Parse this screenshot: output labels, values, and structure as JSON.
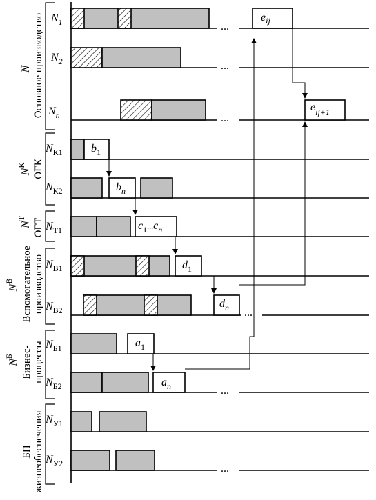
{
  "groups": {
    "main": {
      "letter": "N",
      "sup": "",
      "title": "Основное производство"
    },
    "ogk": {
      "letter": "N",
      "sup": "К",
      "title": "ОГК"
    },
    "ogt": {
      "letter": "N",
      "sup": "Т",
      "title": "ОГТ"
    },
    "aux": {
      "letter": "N",
      "sup": "В",
      "title1": "Вспомогательное",
      "title2": "производство"
    },
    "biz": {
      "letter": "N",
      "sup": "Б",
      "title1": "Бизнес-",
      "title2": "процессы"
    },
    "life": {
      "title1": "БП",
      "title2": "жизнеобеспечения"
    }
  },
  "rows": [
    {
      "id": "n1",
      "letter": "N",
      "sub": "1"
    },
    {
      "id": "n2",
      "letter": "N",
      "sub": "2"
    },
    {
      "id": "nn",
      "letter": "N",
      "sub": "n"
    },
    {
      "id": "k1",
      "letter": "N",
      "sub": "К1"
    },
    {
      "id": "k2",
      "letter": "N",
      "sub": "К2"
    },
    {
      "id": "t1",
      "letter": "N",
      "sub": "Т1"
    },
    {
      "id": "v1",
      "letter": "N",
      "sub": "В1"
    },
    {
      "id": "v2",
      "letter": "N",
      "sub": "В2"
    },
    {
      "id": "b1",
      "letter": "N",
      "sub": "Б1"
    },
    {
      "id": "b2",
      "letter": "N",
      "sub": "Б2"
    },
    {
      "id": "u1",
      "letter": "N",
      "sub": "У1"
    },
    {
      "id": "u2",
      "letter": "N",
      "sub": "У2"
    }
  ],
  "tasks": {
    "e_ij": {
      "letter": "e",
      "sub": "ij"
    },
    "e_ij1": {
      "letter": "e",
      "sub": "ij+1"
    },
    "b_1": {
      "letter": "b",
      "sub": "1"
    },
    "b_n": {
      "letter": "b",
      "sub": "n"
    },
    "c": {
      "letter1": "c",
      "sub1": "1",
      "mid": "...",
      "letter2": "c",
      "sub2": "n"
    },
    "d_1": {
      "letter": "d",
      "sub": "1"
    },
    "d_n": {
      "letter": "d",
      "sub": "n"
    },
    "a_1": {
      "letter": "a",
      "sub": "1"
    },
    "a_n": {
      "letter": "a",
      "sub": "n"
    }
  },
  "ellipsis": "..."
}
